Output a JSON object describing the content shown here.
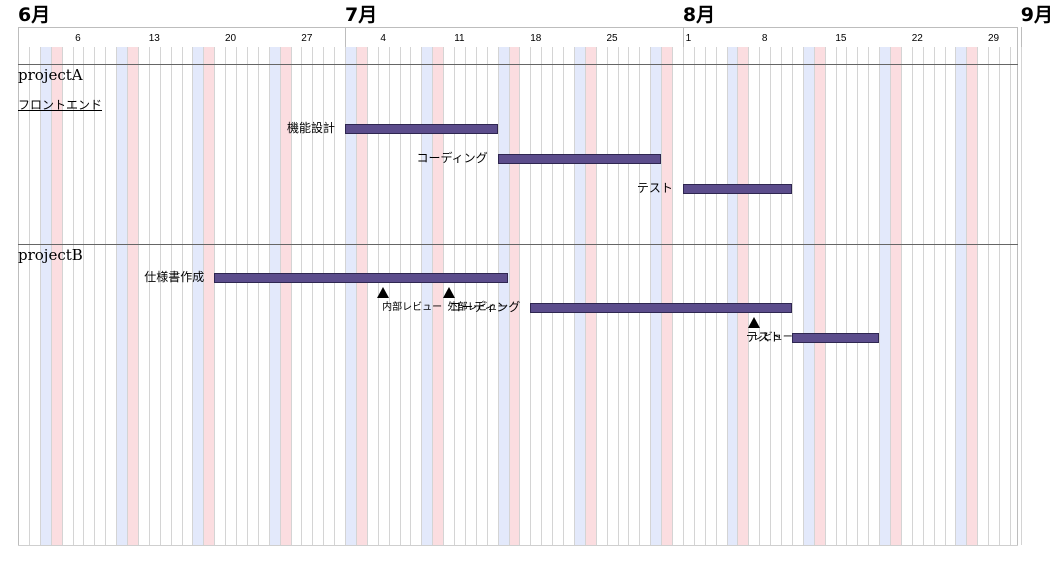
{
  "timeline": {
    "months": [
      "6月",
      "7月",
      "8月",
      "9月"
    ],
    "week_ticks": [
      "6",
      "13",
      "20",
      "27",
      "4",
      "11",
      "18",
      "25",
      "1",
      "8",
      "15",
      "22",
      "29"
    ]
  },
  "projects": [
    {
      "name": "projectA",
      "groups": [
        {
          "name": "フロントエンド",
          "tasks": [
            {
              "label": "機能設計",
              "start": "07-01",
              "end": "07-14"
            },
            {
              "label": "コーディング",
              "start": "07-15",
              "end": "07-29"
            },
            {
              "label": "テスト",
              "start": "08-01",
              "end": "08-10"
            }
          ]
        }
      ]
    },
    {
      "name": "projectB",
      "groups": [
        {
          "name": "",
          "tasks": [
            {
              "label": "仕様書作成",
              "start": "06-19",
              "end": "07-15",
              "milestones": [
                {
                  "label": "内部レビュー",
                  "date": "07-04"
                },
                {
                  "label": "外部レビュー",
                  "date": "07-10"
                }
              ]
            },
            {
              "label": "コーディング",
              "start": "07-18",
              "end": "08-10",
              "milestones": [
                {
                  "label": "レビュー",
                  "date": "08-07"
                }
              ]
            },
            {
              "label": "テスト",
              "start": "08-11",
              "end": "08-18"
            }
          ]
        }
      ]
    }
  ],
  "colors": {
    "bar": "#5c4d8c",
    "saturday": "#e3e9fb",
    "sunday": "#fbdde0",
    "grid": "#d4d4d4"
  }
}
